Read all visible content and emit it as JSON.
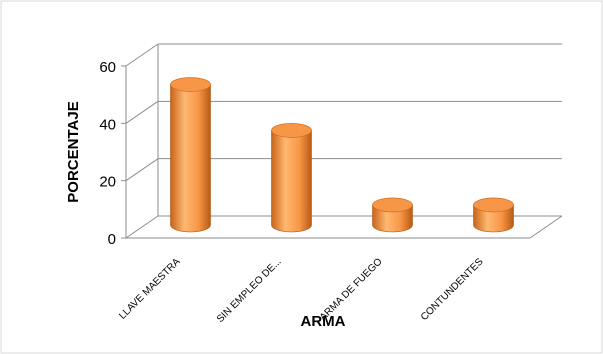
{
  "chart_data": {
    "type": "bar",
    "style": "3d-cylinder",
    "categories": [
      "LLAVE MAESTRA",
      "SIN EMPLEO DE...",
      "ARMA DE FUEGO",
      "CONTUNDENTES"
    ],
    "values": [
      49,
      33,
      7,
      7
    ],
    "xlabel": "ARMA",
    "ylabel": "PORCENTAJE",
    "ylim": [
      0,
      60
    ],
    "yticks": [
      "0",
      "20",
      "40",
      "60"
    ],
    "grid": true,
    "legend": "none",
    "colors": {
      "bar_light": "#FFB870",
      "bar_mid": "#F79646",
      "bar_dark": "#C8641A",
      "grid": "#8C8C8C",
      "text": "#000000"
    }
  }
}
